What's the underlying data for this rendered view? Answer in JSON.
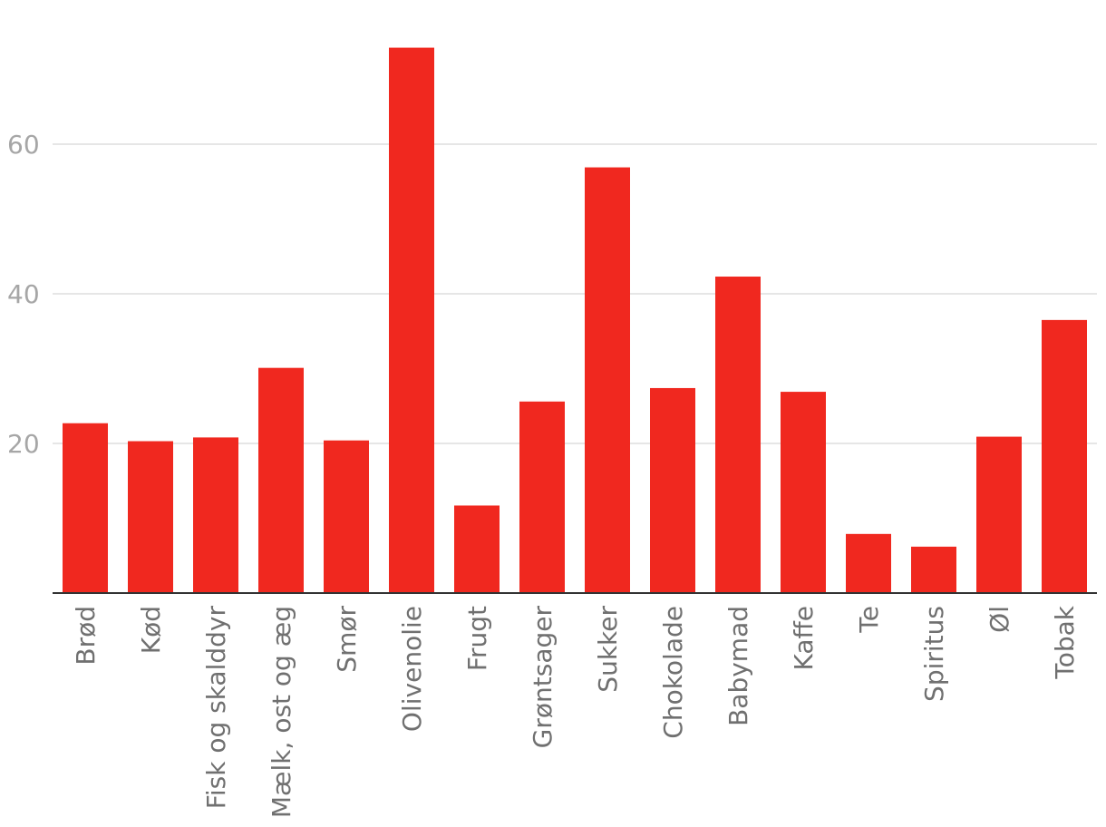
{
  "chart_data": {
    "type": "bar",
    "categories": [
      "Brød",
      "Kød",
      "Fisk og skalddyr",
      "Mælk, ost og æg",
      "Smør",
      "Olivenolie",
      "Frugt",
      "Grøntsager",
      "Sukker",
      "Chokolade",
      "Babymad",
      "Kaffe",
      "Te",
      "Spiritus",
      "Øl",
      "Tobak"
    ],
    "values": [
      22.7,
      20.3,
      20.8,
      30.1,
      20.4,
      72.9,
      11.7,
      25.6,
      56.9,
      27.4,
      42.3,
      26.9,
      7.9,
      6.2,
      20.9,
      36.5
    ],
    "title": "",
    "xlabel": "",
    "ylabel": "",
    "ylim": [
      0,
      75
    ],
    "yticks": [
      20,
      40,
      60
    ],
    "ytick_labels": [
      "20",
      "40",
      "60"
    ],
    "grid": true,
    "bar_color": "#f0281f",
    "gridline_color": "#dedede",
    "baseline_color": "#333333",
    "ytick_color": "#a6a6a6",
    "xtick_color": "#707070"
  }
}
